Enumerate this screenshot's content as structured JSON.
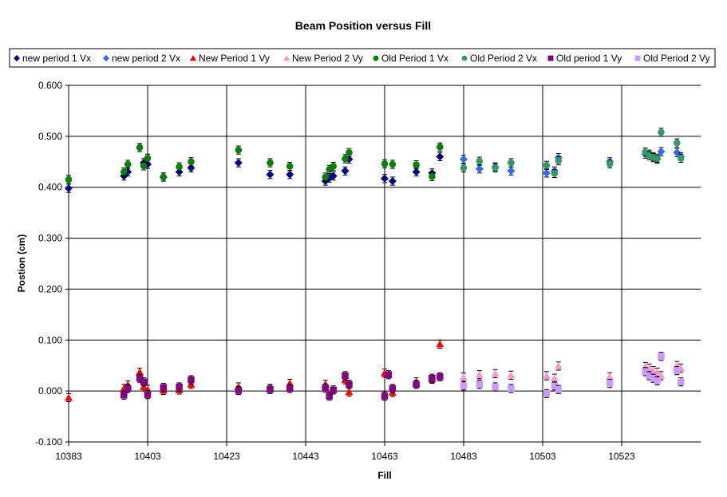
{
  "chart_data": {
    "type": "scatter",
    "title": "Beam Position versus Fill",
    "xlabel": "Fill",
    "ylabel": "Postion (cm)",
    "xlim": [
      10383,
      10543
    ],
    "ylim": [
      -0.1,
      0.6
    ],
    "x_ticks": [
      "10383",
      "10403",
      "10423",
      "10443",
      "10463",
      "10483",
      "10503",
      "10523"
    ],
    "y_ticks": [
      "-0.100",
      "0.000",
      "0.100",
      "0.200",
      "0.300",
      "0.400",
      "0.500",
      "0.600"
    ],
    "grid": "major both",
    "legend_position": "top",
    "series": [
      {
        "name": "new period 1 Vx",
        "marker": "diamond",
        "color": "#000080",
        "x": [
          10383,
          10397,
          10398,
          10402,
          10403,
          10407,
          10411,
          10414,
          10426,
          10434,
          10439,
          10448,
          10449,
          10450,
          10453,
          10454,
          10463,
          10465,
          10471,
          10475,
          10477
        ],
        "y": [
          0.398,
          0.422,
          0.43,
          0.448,
          0.445,
          0.42,
          0.43,
          0.438,
          0.448,
          0.425,
          0.425,
          0.412,
          0.418,
          0.422,
          0.432,
          0.455,
          0.417,
          0.412,
          0.43,
          0.428,
          0.46
        ]
      },
      {
        "name": "new period 2 Vx",
        "marker": "diamond",
        "color": "#3366ff",
        "x": [
          10483,
          10487,
          10491,
          10495,
          10504,
          10506,
          10507,
          10520,
          10529,
          10530,
          10531,
          10532,
          10533,
          10537,
          10538
        ],
        "y": [
          0.455,
          0.436,
          0.44,
          0.432,
          0.428,
          0.432,
          0.458,
          0.45,
          0.465,
          0.465,
          0.46,
          0.455,
          0.47,
          0.468,
          0.46
        ]
      },
      {
        "name": "New Period 1 Vy",
        "marker": "triangle",
        "color": "#ff0000",
        "x": [
          10383,
          10397,
          10398,
          10401,
          10402,
          10403,
          10407,
          10411,
          10414,
          10426,
          10434,
          10439,
          10448,
          10453,
          10454,
          10463,
          10465,
          10471,
          10475,
          10477
        ],
        "y": [
          -0.013,
          0.005,
          0.012,
          0.037,
          0.008,
          0.003,
          0.001,
          0.002,
          0.013,
          0.008,
          0.005,
          0.015,
          0.013,
          0.022,
          -0.002,
          0.035,
          -0.003,
          0.018,
          0.023,
          0.092
        ]
      },
      {
        "name": "New Period 2 Vy",
        "marker": "triangle",
        "color": "#ff99cc",
        "x": [
          10483,
          10487,
          10491,
          10495,
          10504,
          10506,
          10507,
          10520,
          10529,
          10530,
          10531,
          10532,
          10533,
          10537,
          10538
        ],
        "y": [
          0.027,
          0.032,
          0.034,
          0.031,
          0.03,
          0.025,
          0.049,
          0.028,
          0.048,
          0.045,
          0.04,
          0.037,
          0.03,
          0.05,
          0.045
        ]
      },
      {
        "name": "Old Period 1 Vx",
        "marker": "circle",
        "color": "#008000",
        "x": [
          10383,
          10397,
          10398,
          10401,
          10402,
          10403,
          10407,
          10411,
          10414,
          10426,
          10434,
          10439,
          10448,
          10449,
          10450,
          10453,
          10454,
          10463,
          10465,
          10471,
          10475,
          10477
        ],
        "y": [
          0.415,
          0.43,
          0.445,
          0.478,
          0.442,
          0.457,
          0.42,
          0.44,
          0.45,
          0.473,
          0.448,
          0.441,
          0.42,
          0.435,
          0.441,
          0.456,
          0.468,
          0.446,
          0.445,
          0.444,
          0.421,
          0.479
        ]
      },
      {
        "name": "Old Period 2 Vx",
        "marker": "circle",
        "color": "#339966",
        "x": [
          10483,
          10487,
          10491,
          10495,
          10504,
          10506,
          10507,
          10520,
          10529,
          10530,
          10531,
          10532,
          10533,
          10537,
          10538
        ],
        "y": [
          0.438,
          0.451,
          0.438,
          0.448,
          0.443,
          0.427,
          0.452,
          0.446,
          0.469,
          0.462,
          0.458,
          0.457,
          0.508,
          0.487,
          0.457
        ]
      },
      {
        "name": "Old period 1 Vy",
        "marker": "square",
        "color": "#800080",
        "x": [
          10397,
          10398,
          10401,
          10402,
          10403,
          10407,
          10411,
          10414,
          10426,
          10434,
          10439,
          10448,
          10449,
          10450,
          10453,
          10454,
          10463,
          10464,
          10465,
          10471,
          10475,
          10477
        ],
        "y": [
          -0.008,
          0.005,
          0.025,
          0.018,
          -0.007,
          0.007,
          0.008,
          0.022,
          0.001,
          0.003,
          0.005,
          0.006,
          -0.01,
          0.002,
          0.03,
          0.013,
          -0.01,
          0.032,
          0.005,
          0.013,
          0.025,
          0.028
        ]
      },
      {
        "name": "Old Period 2 Vy",
        "marker": "square",
        "color": "#cc99ff",
        "x": [
          10483,
          10487,
          10491,
          10495,
          10504,
          10506,
          10507,
          10520,
          10529,
          10530,
          10531,
          10532,
          10533,
          10537,
          10538
        ],
        "y": [
          0.01,
          0.013,
          0.008,
          0.005,
          -0.005,
          0.01,
          0.003,
          0.015,
          0.038,
          0.03,
          0.025,
          0.02,
          0.068,
          0.04,
          0.018
        ]
      }
    ]
  }
}
